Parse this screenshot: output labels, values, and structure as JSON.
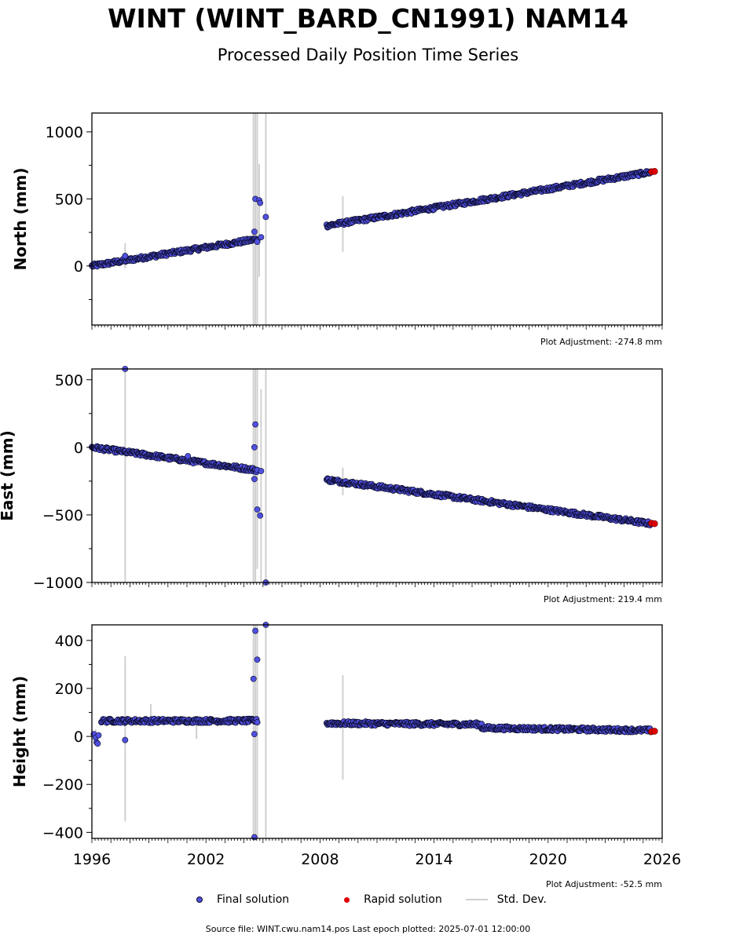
{
  "title": "WINT (WINT_BARD_CN1991) NAM14",
  "subtitle": "Processed Daily Position Time Series",
  "source": "Source file: WINT.cwu.nam14.pos  Last epoch plotted: 2025-07-01 12:00:00",
  "legend": {
    "final": "Final solution",
    "rapid": "Rapid solution",
    "std": "Std. Dev."
  },
  "colors": {
    "final_fill": "#5050e0",
    "final_edge": "#0a0a28",
    "rapid": "#e00000",
    "std_dev": "#d0d0d0"
  },
  "chart_data": [
    {
      "type": "scatter",
      "ylabel": "North (mm)",
      "adjustment": "Plot Adjustment: -274.8 mm",
      "xlim": [
        1996,
        2026
      ],
      "ylim": [
        -440,
        1140
      ],
      "yticks": [
        0,
        500,
        1000
      ],
      "gaps": [
        [
          2005.1,
          2008.35
        ]
      ],
      "segments": [
        {
          "series": "final",
          "x": [
            1996.0,
            2004.7
          ],
          "y": [
            0,
            200
          ]
        },
        {
          "series": "final",
          "x": [
            2008.35,
            2025.4
          ],
          "y": [
            300,
            700
          ]
        }
      ],
      "outliers": [
        {
          "x": 1997.75,
          "y": 75
        },
        {
          "x": 2004.55,
          "y": 255
        },
        {
          "x": 2004.6,
          "y": 500
        },
        {
          "x": 2004.8,
          "y": 490
        },
        {
          "x": 2004.85,
          "y": 470
        },
        {
          "x": 2005.15,
          "y": 365
        },
        {
          "x": 2004.7,
          "y": 180
        },
        {
          "x": 2004.9,
          "y": 215
        }
      ],
      "rapid": {
        "x": [
          2025.45,
          2025.6
        ],
        "y": [
          702,
          705
        ]
      },
      "stddev_bars": [
        {
          "x": 1997.75,
          "ylo": -20,
          "yhi": 170
        },
        {
          "x": 2004.5,
          "ylo": -440,
          "yhi": 1140
        },
        {
          "x": 2004.6,
          "ylo": -440,
          "yhi": 1140
        },
        {
          "x": 2004.7,
          "ylo": -440,
          "yhi": 1140
        },
        {
          "x": 2004.8,
          "ylo": -80,
          "yhi": 760
        },
        {
          "x": 2005.15,
          "ylo": -440,
          "yhi": 1140
        },
        {
          "x": 2009.2,
          "ylo": 105,
          "yhi": 520
        }
      ]
    },
    {
      "type": "scatter",
      "ylabel": "East (mm)",
      "adjustment": "Plot Adjustment: 219.4 mm",
      "xlim": [
        1996,
        2026
      ],
      "ylim": [
        -1000,
        580
      ],
      "yticks": [
        -1000,
        -500,
        0,
        500
      ],
      "gaps": [
        [
          2005.1,
          2008.35
        ]
      ],
      "segments": [
        {
          "series": "final",
          "x": [
            1996.0,
            2004.7
          ],
          "y": [
            0,
            -170
          ]
        },
        {
          "series": "final",
          "x": [
            2008.35,
            2025.4
          ],
          "y": [
            -240,
            -565
          ]
        }
      ],
      "outliers": [
        {
          "x": 1997.75,
          "y": 580
        },
        {
          "x": 2004.55,
          "y": 0
        },
        {
          "x": 2004.6,
          "y": 170
        },
        {
          "x": 2004.55,
          "y": -235
        },
        {
          "x": 2004.7,
          "y": -460
        },
        {
          "x": 2004.85,
          "y": -505
        },
        {
          "x": 2005.15,
          "y": -1000
        },
        {
          "x": 2001.05,
          "y": -65
        },
        {
          "x": 2004.9,
          "y": -175
        }
      ],
      "rapid": {
        "x": [
          2025.45,
          2025.6
        ],
        "y": [
          -562,
          -565
        ]
      },
      "stddev_bars": [
        {
          "x": 1997.75,
          "ylo": -1000,
          "yhi": 580
        },
        {
          "x": 2004.5,
          "ylo": -1000,
          "yhi": 580
        },
        {
          "x": 2004.6,
          "ylo": -1000,
          "yhi": 580
        },
        {
          "x": 2004.7,
          "ylo": -900,
          "yhi": 580
        },
        {
          "x": 2004.9,
          "ylo": -1000,
          "yhi": 430
        },
        {
          "x": 2005.15,
          "ylo": -1000,
          "yhi": 580
        },
        {
          "x": 2009.2,
          "ylo": -355,
          "yhi": -150
        }
      ]
    },
    {
      "type": "scatter",
      "ylabel": "Height (mm)",
      "adjustment": "Plot Adjustment: -52.5 mm",
      "xlim": [
        1996,
        2026
      ],
      "ylim": [
        -425,
        465
      ],
      "yticks": [
        -400,
        -200,
        0,
        200,
        400
      ],
      "xticks": [
        1996,
        2002,
        2008,
        2014,
        2020,
        2026
      ],
      "gaps": [
        [
          2005.1,
          2008.35
        ]
      ],
      "segments": [
        {
          "series": "final",
          "x": [
            1996.5,
            2004.7
          ],
          "y": [
            65,
            65
          ]
        },
        {
          "series": "final",
          "x": [
            2008.35,
            2016.5
          ],
          "y": [
            55,
            50
          ]
        },
        {
          "series": "final",
          "x": [
            2016.5,
            2025.4
          ],
          "y": [
            35,
            25
          ]
        }
      ],
      "outliers": [
        {
          "x": 1996.1,
          "y": 10
        },
        {
          "x": 1996.2,
          "y": -5
        },
        {
          "x": 1996.25,
          "y": -25
        },
        {
          "x": 1996.3,
          "y": -30
        },
        {
          "x": 1996.35,
          "y": 5
        },
        {
          "x": 1997.75,
          "y": -15
        },
        {
          "x": 2004.5,
          "y": 240
        },
        {
          "x": 2004.6,
          "y": 440
        },
        {
          "x": 2004.7,
          "y": 320
        },
        {
          "x": 2004.55,
          "y": 10
        },
        {
          "x": 2004.55,
          "y": -420
        },
        {
          "x": 2005.15,
          "y": 465
        }
      ],
      "rapid": {
        "x": [
          2025.45,
          2025.6
        ],
        "y": [
          20,
          22
        ]
      },
      "stddev_bars": [
        {
          "x": 1996.2,
          "ylo": -40,
          "yhi": 30
        },
        {
          "x": 1997.75,
          "ylo": -355,
          "yhi": 335
        },
        {
          "x": 1999.1,
          "ylo": 40,
          "yhi": 135
        },
        {
          "x": 2001.5,
          "ylo": -10,
          "yhi": 80
        },
        {
          "x": 2004.5,
          "ylo": -425,
          "yhi": 465
        },
        {
          "x": 2004.6,
          "ylo": -425,
          "yhi": 465
        },
        {
          "x": 2004.7,
          "ylo": -425,
          "yhi": 465
        },
        {
          "x": 2005.15,
          "ylo": -425,
          "yhi": 465
        },
        {
          "x": 2009.2,
          "ylo": -180,
          "yhi": 255
        }
      ]
    }
  ]
}
